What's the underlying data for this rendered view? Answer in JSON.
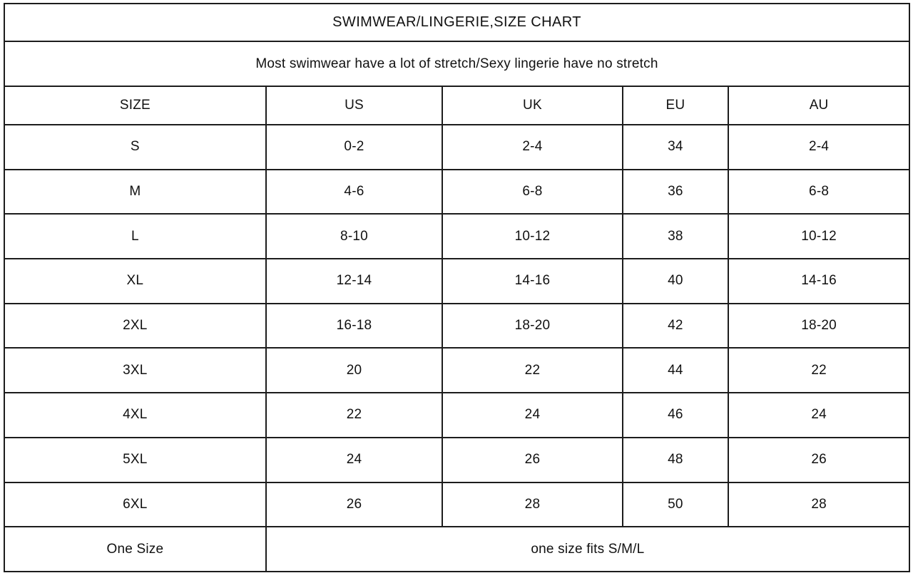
{
  "colors": {
    "border": "#1c1c1c",
    "text": "#111111",
    "background": "#ffffff"
  },
  "table": {
    "title": "SWIMWEAR/LINGERIE,SIZE CHART",
    "subtitle": "Most swimwear have a lot of stretch/Sexy lingerie have no stretch",
    "columns": [
      "SIZE",
      "US",
      "UK",
      "EU",
      "AU"
    ],
    "rows": [
      [
        "S",
        "0-2",
        "2-4",
        "34",
        "2-4"
      ],
      [
        "M",
        "4-6",
        "6-8",
        "36",
        "6-8"
      ],
      [
        "L",
        "8-10",
        "10-12",
        "38",
        "10-12"
      ],
      [
        "XL",
        "12-14",
        "14-16",
        "40",
        "14-16"
      ],
      [
        "2XL",
        "16-18",
        "18-20",
        "42",
        "18-20"
      ],
      [
        "3XL",
        "20",
        "22",
        "44",
        "22"
      ],
      [
        "4XL",
        "22",
        "24",
        "46",
        "24"
      ],
      [
        "5XL",
        "24",
        "26",
        "48",
        "26"
      ],
      [
        "6XL",
        "26",
        "28",
        "50",
        "28"
      ]
    ],
    "one_size": {
      "label": "One Size",
      "value": "one size fits S/M/L"
    }
  },
  "chart_data": {
    "type": "table",
    "title": "SWIMWEAR/LINGERIE,SIZE CHART",
    "subtitle": "Most swimwear have a lot of stretch/Sexy lingerie have no stretch",
    "columns": [
      "SIZE",
      "US",
      "UK",
      "EU",
      "AU"
    ],
    "rows": [
      [
        "S",
        "0-2",
        "2-4",
        "34",
        "2-4"
      ],
      [
        "M",
        "4-6",
        "6-8",
        "36",
        "6-8"
      ],
      [
        "L",
        "8-10",
        "10-12",
        "38",
        "10-12"
      ],
      [
        "XL",
        "12-14",
        "14-16",
        "40",
        "14-16"
      ],
      [
        "2XL",
        "16-18",
        "18-20",
        "42",
        "18-20"
      ],
      [
        "3XL",
        "20",
        "22",
        "44",
        "22"
      ],
      [
        "4XL",
        "22",
        "24",
        "46",
        "24"
      ],
      [
        "5XL",
        "24",
        "26",
        "48",
        "26"
      ],
      [
        "6XL",
        "26",
        "28",
        "50",
        "28"
      ],
      [
        "One Size",
        "one size fits S/M/L",
        "",
        "",
        ""
      ]
    ],
    "notes": "Last row: value cell spans the US, UK, EU and AU columns",
    "grid": true,
    "legend_position": "none"
  }
}
